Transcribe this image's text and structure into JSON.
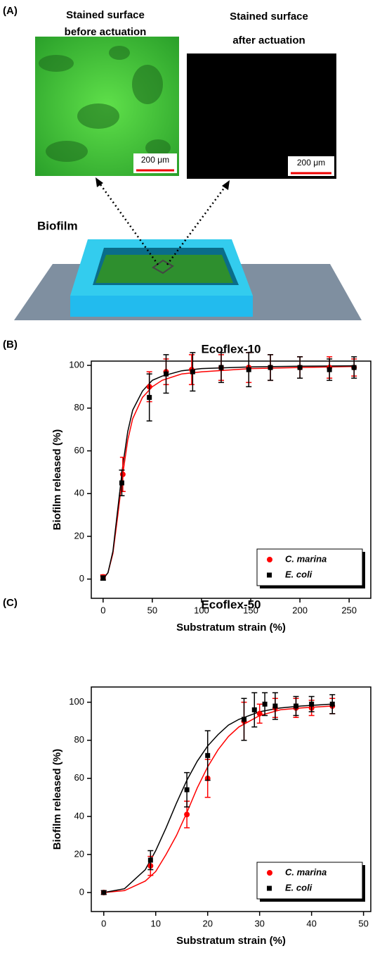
{
  "panel_a": {
    "label": "(A)",
    "images": [
      {
        "title_lines": [
          "Stained surface",
          "before actuation"
        ],
        "scale": "200 μm"
      },
      {
        "title_lines": [
          "Stained surface",
          "after actuation"
        ],
        "scale": "200 μm"
      }
    ],
    "biofilm_label": "Biofilm"
  },
  "chart_data": [
    {
      "type": "scatter",
      "label": "(B)",
      "title": "Ecoflex-10",
      "x_label": "Substratum strain (%)",
      "y_label": "Biofilm released (%)",
      "xlim": [
        -12,
        272
      ],
      "ylim": [
        -9,
        102
      ],
      "xticks": [
        0,
        50,
        100,
        150,
        200,
        250
      ],
      "yticks": [
        0,
        20,
        40,
        60,
        80,
        100
      ],
      "legend": "lower right",
      "series": [
        {
          "name": "C. marina",
          "color": "#ff0000",
          "marker": "circle",
          "x": [
            0,
            20,
            47,
            64,
            90,
            120,
            148,
            170,
            200,
            230,
            255
          ],
          "values": [
            1,
            49,
            90,
            97,
            98,
            99,
            99,
            99,
            99,
            99,
            99
          ],
          "error": [
            1,
            8,
            7,
            6,
            7,
            6,
            7,
            6,
            5,
            5,
            4
          ],
          "fit_x": [
            0,
            5,
            10,
            15,
            20,
            25,
            30,
            40,
            50,
            60,
            80,
            100,
            150,
            200,
            255
          ],
          "fit_values": [
            0,
            3,
            12,
            30,
            49,
            65,
            75,
            85,
            90,
            93,
            96,
            97,
            98.5,
            99,
            99.5
          ]
        },
        {
          "name": "E. coli",
          "color": "#000000",
          "marker": "square",
          "x": [
            0,
            19,
            47,
            64,
            91,
            120,
            148,
            170,
            200,
            230,
            255
          ],
          "values": [
            0.5,
            45,
            85,
            96,
            97,
            99,
            98,
            99,
            99,
            98,
            99
          ],
          "error": [
            1,
            6,
            11,
            9,
            9,
            7,
            8,
            6,
            5,
            5,
            5
          ],
          "fit_x": [
            0,
            5,
            10,
            15,
            20,
            25,
            30,
            40,
            50,
            60,
            80,
            100,
            150,
            200,
            255
          ],
          "fit_values": [
            0,
            3,
            13,
            33,
            53,
            69,
            79,
            88,
            93,
            95,
            97.5,
            98.5,
            99.3,
            99.6,
            99.8
          ]
        }
      ]
    },
    {
      "type": "scatter",
      "label": "(C)",
      "title": "Ecoflex-50",
      "x_label": "Substratum strain (%)",
      "y_label": "Biofilm released (%)",
      "xlim": [
        -2.4,
        51.4
      ],
      "ylim": [
        -10,
        108
      ],
      "xticks": [
        0,
        10,
        20,
        30,
        40,
        50
      ],
      "yticks": [
        0,
        20,
        40,
        60,
        80,
        100
      ],
      "legend": "lower right",
      "series": [
        {
          "name": "C. marina",
          "color": "#ff0000",
          "marker": "circle",
          "x": [
            0,
            9,
            16,
            20,
            27,
            30,
            33,
            37,
            40,
            44
          ],
          "values": [
            0,
            14,
            41,
            60,
            90,
            94,
            97,
            97,
            97,
            98
          ],
          "error": [
            1,
            5,
            7,
            10,
            10,
            5,
            5,
            5,
            4,
            4
          ],
          "fit_x": [
            0,
            4,
            8,
            10,
            12,
            14,
            16,
            18,
            20,
            22,
            24,
            26,
            28,
            30,
            34,
            38,
            44
          ],
          "fit_values": [
            0,
            1,
            6,
            11,
            20,
            30,
            42,
            55,
            66,
            75,
            82,
            87,
            90,
            93,
            96,
            97,
            98
          ]
        },
        {
          "name": "E. coli",
          "color": "#000000",
          "marker": "square",
          "x": [
            0,
            9,
            16,
            20,
            27,
            29,
            31,
            33,
            37,
            40,
            44
          ],
          "values": [
            0,
            17,
            54,
            72,
            91,
            96,
            99,
            98,
            98,
            99,
            99
          ],
          "error": [
            1,
            5,
            9,
            13,
            11,
            9,
            6,
            7,
            5,
            4,
            5
          ],
          "fit_x": [
            0,
            4,
            8,
            10,
            12,
            14,
            16,
            18,
            20,
            22,
            24,
            26,
            28,
            30,
            34,
            38,
            44
          ],
          "fit_values": [
            0,
            2,
            12,
            22,
            34,
            47,
            59,
            69,
            77,
            83,
            88,
            91,
            93,
            95,
            97,
            98,
            99
          ]
        }
      ]
    }
  ]
}
